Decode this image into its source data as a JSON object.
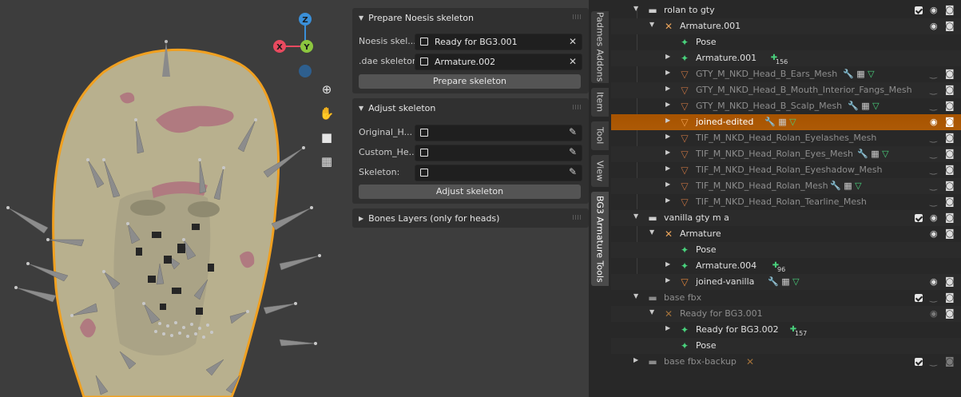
{
  "colors": {
    "accent_selected_row": "#ad5a06",
    "armature_orange": "#e8a35a",
    "bone_green": "#49d17c",
    "mesh_orange": "#e0843a",
    "wrench_blue": "#7aa2e6",
    "gizmo_x": "#e84a5f",
    "gizmo_y": "#8cc63f",
    "gizmo_z": "#3a8fd8"
  },
  "viewport": {
    "gizmo": {
      "z": "Z",
      "y": "Y",
      "x": "X"
    },
    "tools": [
      "zoom-icon",
      "hand-pan-icon",
      "camera-icon",
      "grid-icon"
    ]
  },
  "npanel": {
    "prepare": {
      "title": "Prepare Noesis skeleton",
      "noesis_label": "Noesis skel...",
      "noesis_value": "Ready for BG3.001",
      "dae_label": ".dae skeleton:",
      "dae_value": "Armature.002",
      "button": "Prepare skeleton"
    },
    "adjust": {
      "title": "Adjust skeleton",
      "original_label": "Original_H...",
      "custom_label": "Custom_He...",
      "skeleton_label": "Skeleton:",
      "button": "Adjust skeleton"
    },
    "bones": {
      "title": "Bones Layers (only for heads)"
    }
  },
  "tabs": [
    "Padmes Addons",
    "Item",
    "Tool",
    "View",
    "BG3 Armature Tools"
  ],
  "outliner": {
    "rows": [
      {
        "name": "rolan to gty"
      },
      {
        "name": "Armature.001"
      },
      {
        "name": "Pose"
      },
      {
        "name": "Armature.001",
        "count": "156"
      },
      {
        "name": "GTY_M_NKD_Head_B_Ears_Mesh"
      },
      {
        "name": "GTY_M_NKD_Head_B_Mouth_Interior_Fangs_Mesh"
      },
      {
        "name": "GTY_M_NKD_Head_B_Scalp_Mesh"
      },
      {
        "name": "joined-edited"
      },
      {
        "name": "TIF_M_NKD_Head_Rolan_Eyelashes_Mesh"
      },
      {
        "name": "TIF_M_NKD_Head_Rolan_Eyes_Mesh"
      },
      {
        "name": "TIF_M_NKD_Head_Rolan_Eyeshadow_Mesh"
      },
      {
        "name": "TIF_M_NKD_Head_Rolan_Mesh"
      },
      {
        "name": "TIF_M_NKD_Head_Rolan_Tearline_Mesh"
      },
      {
        "name": "vanilla gty m a"
      },
      {
        "name": "Armature"
      },
      {
        "name": "Pose"
      },
      {
        "name": "Armature.004",
        "count": "96"
      },
      {
        "name": "joined-vanilla"
      },
      {
        "name": "base fbx"
      },
      {
        "name": "Ready for BG3.001"
      },
      {
        "name": "Ready for BG3.002",
        "count": "157"
      },
      {
        "name": "Pose"
      },
      {
        "name": "base fbx-backup"
      }
    ]
  }
}
